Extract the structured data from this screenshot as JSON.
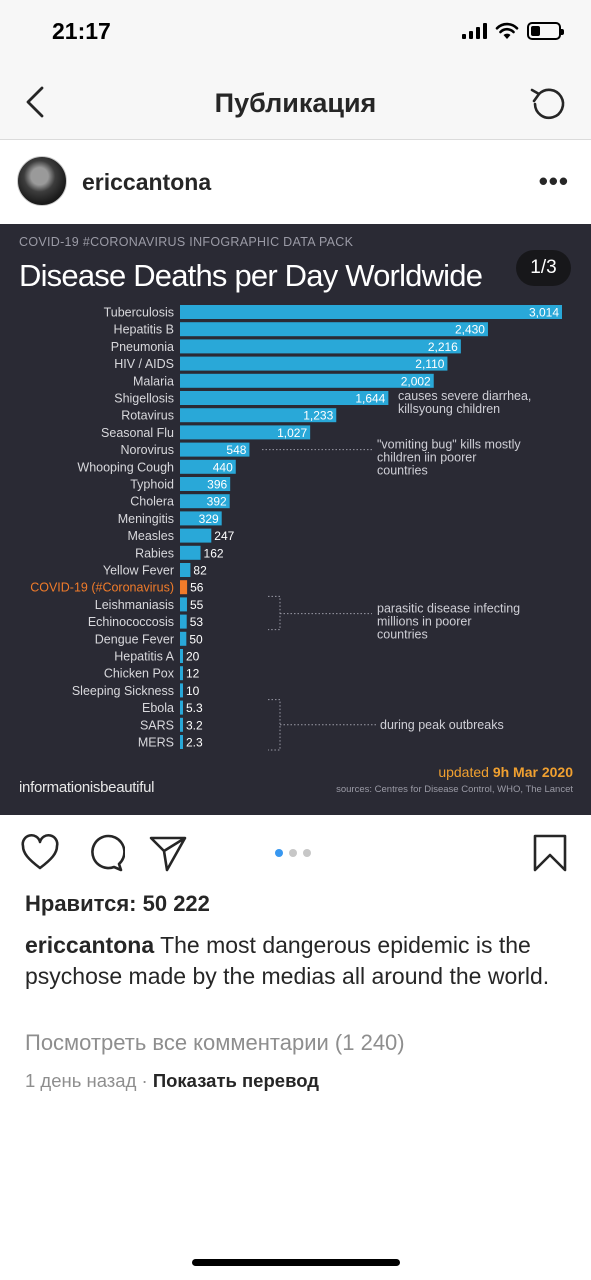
{
  "status_bar": {
    "time": "21:17",
    "battery_level": 0.35
  },
  "nav": {
    "title": "Публикация",
    "back_icon": "chevron-left-icon",
    "refresh_icon": "refresh-icon"
  },
  "post": {
    "username": "ericcantona",
    "more": "•••"
  },
  "infographic": {
    "kicker": "COVID-19 #CORONAVIRUS INFOGRAPHIC DATA PACK",
    "title": "Disease Deaths per Day Worldwide",
    "pager": "1/3",
    "brand": "informationisbeautiful",
    "updated_prefix": "updated ",
    "updated_date": "9h Mar 2020",
    "sources": "sources: Centres for Disease Control, WHO, The Lancet"
  },
  "chart_data": {
    "type": "bar",
    "orientation": "horizontal",
    "title": "Disease Deaths per Day Worldwide",
    "categories": [
      "Tuberculosis",
      "Hepatitis B",
      "Pneumonia",
      "HIV / AIDS",
      "Malaria",
      "Shigellosis",
      "Rotavirus",
      "Seasonal Flu",
      "Norovirus",
      "Whooping Cough",
      "Typhoid",
      "Cholera",
      "Meningitis",
      "Measles",
      "Rabies",
      "Yellow Fever",
      "COVID-19 (#Coronavirus)",
      "Leishmaniasis",
      "Echinococcosis",
      "Dengue Fever",
      "Hepatitis A",
      "Chicken Pox",
      "Sleeping Sickness",
      "Ebola",
      "SARS",
      "MERS"
    ],
    "values": [
      3014,
      2430,
      2216,
      2110,
      2002,
      1644,
      1233,
      1027,
      548,
      440,
      396,
      392,
      329,
      247,
      162,
      82,
      56,
      55,
      53,
      50,
      20,
      12,
      10,
      5.3,
      3.2,
      2.3
    ],
    "value_labels": [
      "3,014",
      "2,430",
      "2,216",
      "2,110",
      "2,002",
      "1,644",
      "1,233",
      "1,027",
      "548",
      "440",
      "396",
      "392",
      "329",
      "247",
      "162",
      "82",
      "56",
      "55",
      "53",
      "50",
      "20",
      "12",
      "10",
      "5.3",
      "3.2",
      "2.3"
    ],
    "highlight": "COVID-19 (#Coronavirus)",
    "colors": {
      "bar": "#29a8d8",
      "highlight": "#f07b2a",
      "label": "#d8d8dc",
      "highlight_label": "#f07b2a"
    },
    "annotations": [
      {
        "text": "causes severe diarrhea, killsyoung children",
        "category": "Shigellosis"
      },
      {
        "text": "\"vomiting bug\" kills mostly children iin poorer countries",
        "category": "Norovirus"
      },
      {
        "text": "parasitic disease infecting millions in poorer countries",
        "category": "Echinococcosis"
      },
      {
        "text": "during peak outbreaks",
        "category": "SARS"
      }
    ]
  },
  "actions": {
    "like_icon": "heart-icon",
    "comment_icon": "comment-icon",
    "share_icon": "send-icon",
    "save_icon": "bookmark-icon",
    "carousel_index": 1,
    "carousel_count": 3
  },
  "likes": "Нравится: 50 222",
  "caption": {
    "username": "ericcantona",
    "text": " The most dangerous epidemic is the psychose made by the medias all around the world."
  },
  "comments_link": "Посмотреть все комментарии (1 240)",
  "meta": {
    "time": "1 день назад",
    "separator": " · ",
    "translate": "Показать перевод"
  }
}
